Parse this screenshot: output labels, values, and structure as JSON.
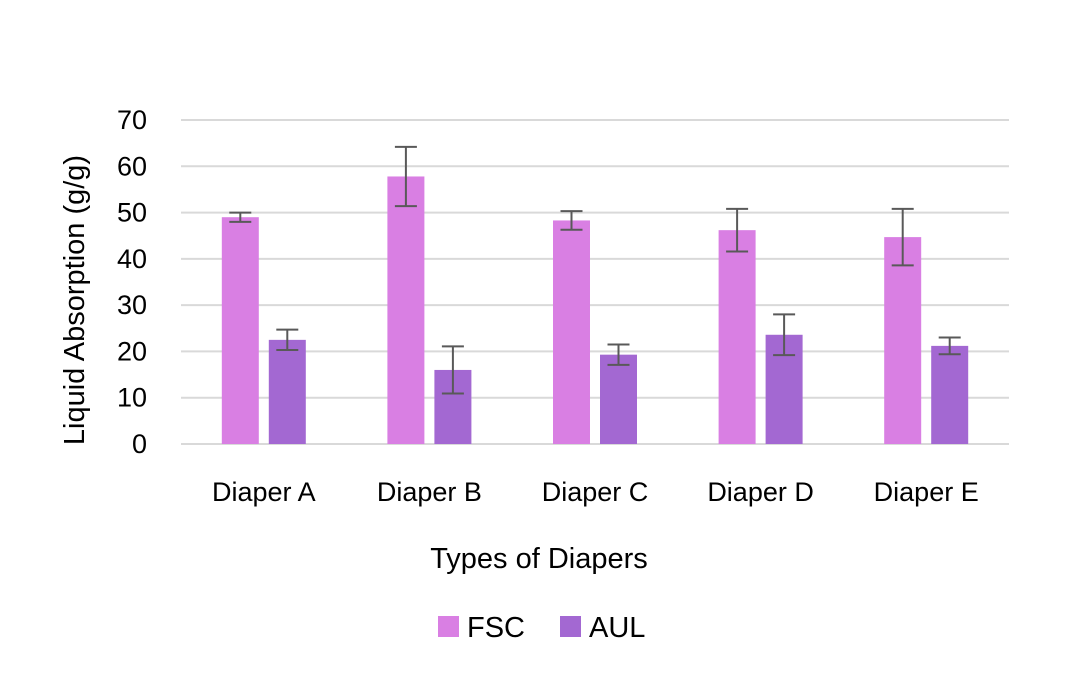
{
  "chart_data": {
    "type": "bar",
    "title": "",
    "xlabel": "Types of Diapers",
    "ylabel": "Liquid Absorption (g/g)",
    "ylim": [
      0,
      70
    ],
    "yticks": [
      0,
      10,
      20,
      30,
      40,
      50,
      60,
      70
    ],
    "grid": "horizontal",
    "legend_position": "bottom",
    "categories": [
      "Diaper A",
      "Diaper B",
      "Diaper C",
      "Diaper D",
      "Diaper E"
    ],
    "series": [
      {
        "name": "FSC",
        "color": "#d97fe3",
        "values": [
          49.0,
          57.8,
          48.3,
          46.2,
          44.7
        ],
        "errors": [
          1.0,
          6.4,
          2.0,
          4.6,
          6.1
        ]
      },
      {
        "name": "AUL",
        "color": "#a368d2",
        "values": [
          22.5,
          16.0,
          19.3,
          23.6,
          21.2
        ],
        "errors": [
          2.2,
          5.1,
          2.2,
          4.4,
          1.8
        ]
      }
    ],
    "error_bar_color": "#595959",
    "grid_color": "#d9d9d9"
  }
}
